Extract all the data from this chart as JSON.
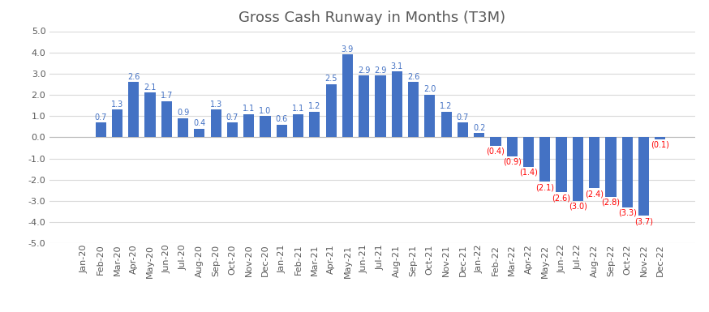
{
  "title": "Gross Cash Runway in Months (T3M)",
  "categories": [
    "Jan-20",
    "Feb-20",
    "Mar-20",
    "Apr-20",
    "May-20",
    "Jun-20",
    "Jul-20",
    "Aug-20",
    "Sep-20",
    "Oct-20",
    "Nov-20",
    "Dec-20",
    "Jan-21",
    "Feb-21",
    "Mar-21",
    "Apr-21",
    "May-21",
    "Jun-21",
    "Jul-21",
    "Aug-21",
    "Sep-21",
    "Oct-21",
    "Nov-21",
    "Dec-21",
    "Jan-22",
    "Feb-22",
    "Mar-22",
    "Apr-22",
    "May-22",
    "Jun-22",
    "Jul-22",
    "Aug-22",
    "Sep-22",
    "Oct-22",
    "Nov-22",
    "Dec-22"
  ],
  "values": [
    0.0,
    0.7,
    1.3,
    2.6,
    2.1,
    1.7,
    0.9,
    0.4,
    1.3,
    0.7,
    1.1,
    1.0,
    0.6,
    1.1,
    1.2,
    2.5,
    3.9,
    2.9,
    2.9,
    3.1,
    2.6,
    2.0,
    1.2,
    0.7,
    0.2,
    -0.4,
    -0.9,
    -1.4,
    -2.1,
    -2.6,
    -3.0,
    -2.4,
    -2.8,
    -3.3,
    -3.7,
    -0.1
  ],
  "bar_color": "#4472C4",
  "label_color_positive": "#4472C4",
  "label_color_negative": "#FF0000",
  "ylim": [
    -5.0,
    5.0
  ],
  "yticks": [
    -5.0,
    -4.0,
    -3.0,
    -2.0,
    -1.0,
    0.0,
    1.0,
    2.0,
    3.0,
    4.0,
    5.0
  ],
  "title_fontsize": 13,
  "tick_fontsize": 8,
  "label_fontsize": 7,
  "background_color": "#FFFFFF",
  "grid_color": "#D9D9D9",
  "text_color": "#595959"
}
